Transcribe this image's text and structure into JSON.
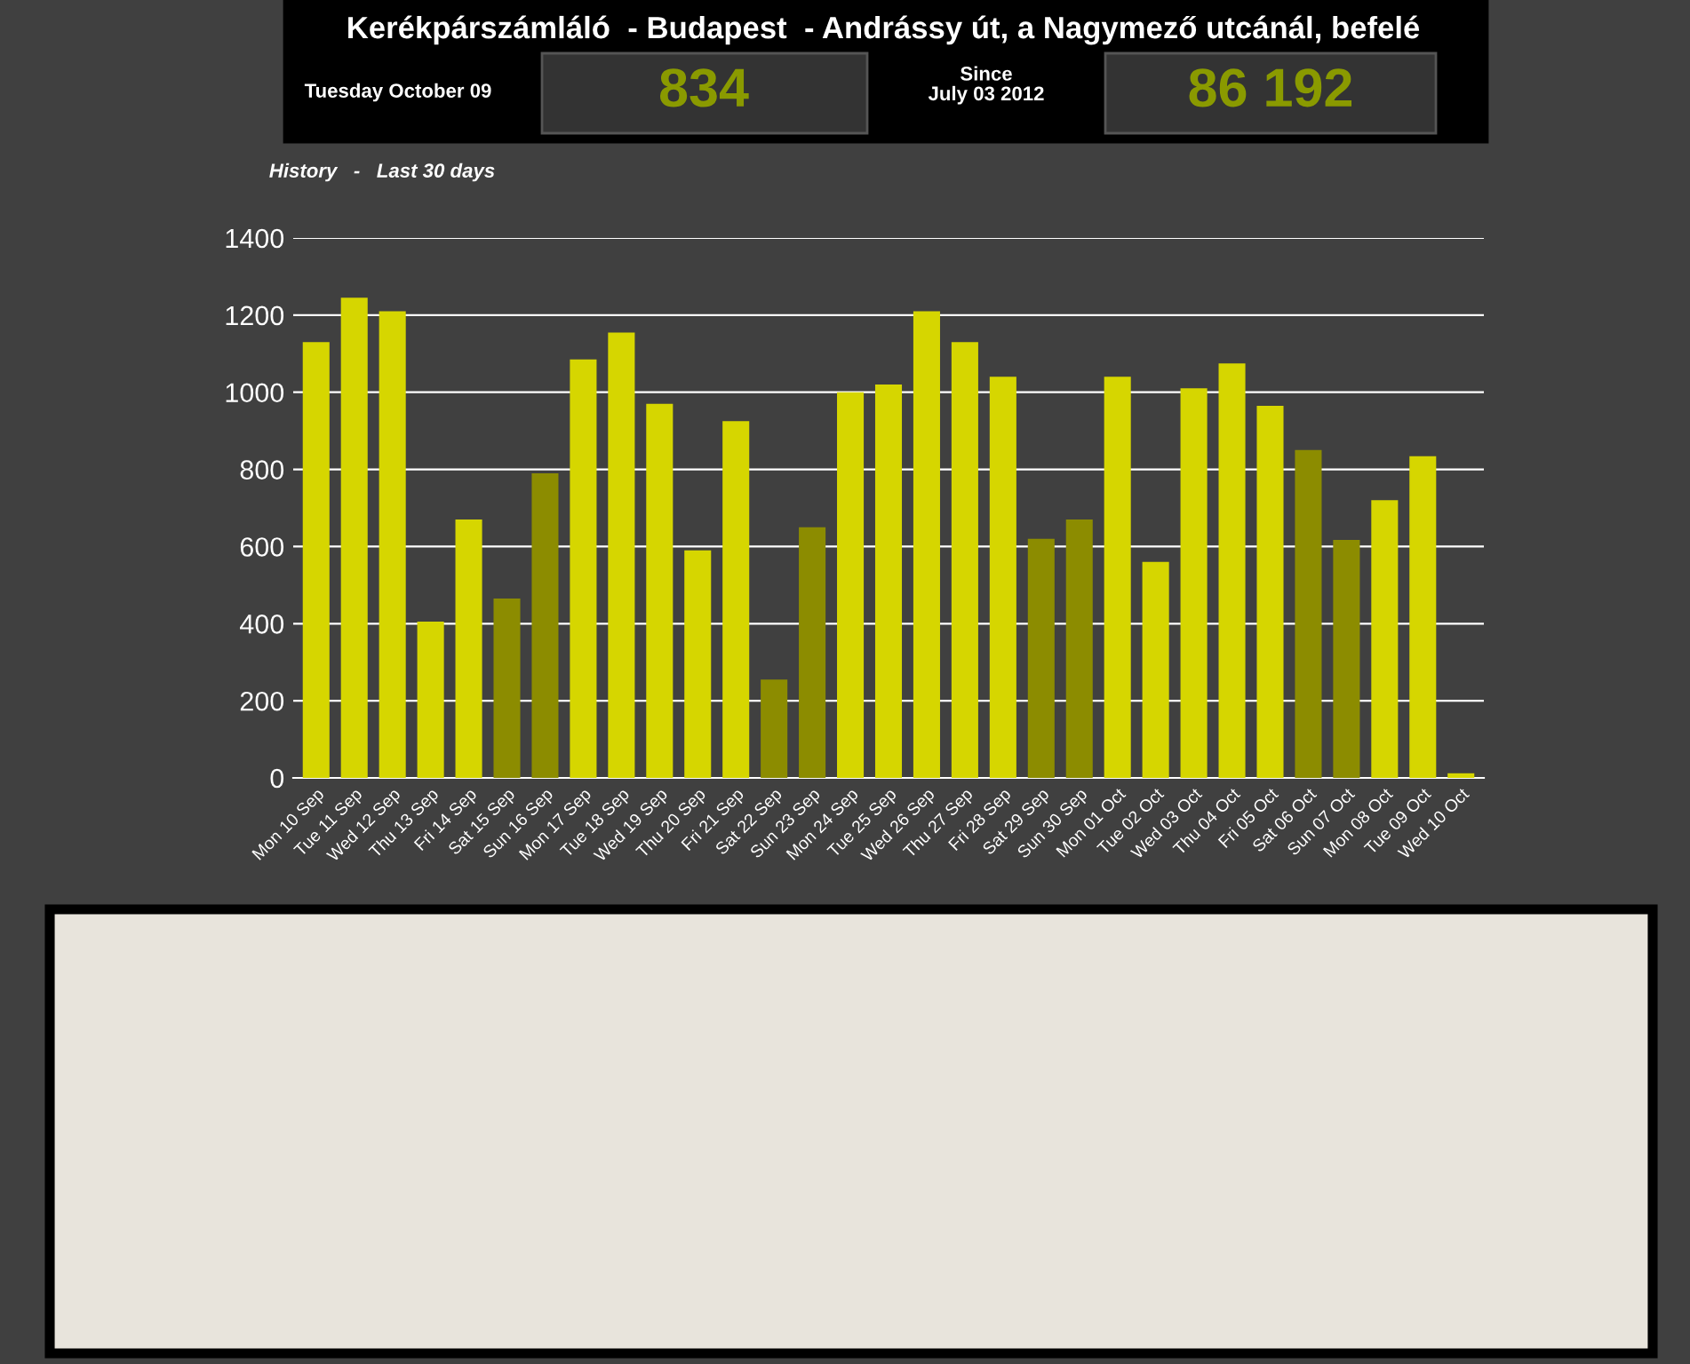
{
  "chart_data": {
    "type": "bar",
    "title": "Kerékpárszámláló  - Budapest  - Andrássy út, a Nagymező utcánál, befelé",
    "annotations": [
      "Tuesday October 09",
      "834",
      "Since\nJuly 03 2012",
      "86 192",
      "History   -   Last 30 days"
    ],
    "categories": [
      "Mon 10 Sep",
      "Tue 11 Sep",
      "Wed 12 Sep",
      "Thu 13 Sep",
      "Fri 14 Sep",
      "Sat 15 Sep",
      "Sun 16 Sep",
      "Mon 17 Sep",
      "Tue 18 Sep",
      "Wed 19 Sep",
      "Thu 20 Sep",
      "Fri 21 Sep",
      "Sat 22 Sep",
      "Sun 23 Sep",
      "Mon 24 Sep",
      "Tue 25 Sep",
      "Wed 26 Sep",
      "Thu 27 Sep",
      "Fri 28 Sep",
      "Sat 29 Sep",
      "Sun 30 Sep",
      "Mon 01 Oct",
      "Tue 02 Oct",
      "Wed 03 Oct",
      "Thu 04 Oct",
      "Fri 05 Oct",
      "Sat 06 Oct",
      "Sun 07 Oct",
      "Mon 08 Oct",
      "Tue 09 Oct",
      "Wed 10 Oct"
    ],
    "values": [
      1130,
      1245,
      1210,
      405,
      670,
      465,
      790,
      1085,
      1155,
      970,
      590,
      925,
      255,
      650,
      1000,
      1020,
      1210,
      1130,
      1040,
      620,
      670,
      1040,
      560,
      1010,
      1075,
      965,
      850,
      617,
      720,
      834,
      12
    ],
    "colors": [
      "#d6d600",
      "#d6d600",
      "#d6d600",
      "#d6d600",
      "#d6d600",
      "#8c8c00",
      "#8c8c00",
      "#d6d600",
      "#d6d600",
      "#d6d600",
      "#d6d600",
      "#d6d600",
      "#8c8c00",
      "#8c8c00",
      "#d6d600",
      "#d6d600",
      "#d6d600",
      "#d6d600",
      "#d6d600",
      "#8c8c00",
      "#8c8c00",
      "#d6d600",
      "#d6d600",
      "#d6d600",
      "#d6d600",
      "#d6d600",
      "#8c8c00",
      "#8c8c00",
      "#d6d600",
      "#d6d600",
      "#d6d600"
    ],
    "ylim": [
      0,
      1400
    ],
    "yticks": [
      0,
      200,
      400,
      600,
      800,
      1000,
      1200,
      1400
    ],
    "grid": "y",
    "legend": false
  }
}
